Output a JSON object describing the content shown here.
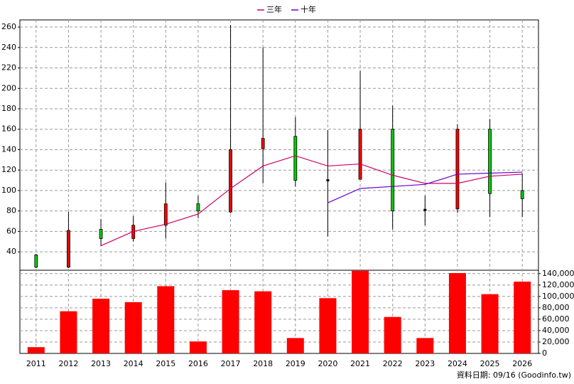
{
  "chart_data": [
    {
      "type": "candlestick",
      "ylim": [
        22,
        267
      ],
      "yticks": [
        40,
        60,
        80,
        100,
        120,
        140,
        160,
        180,
        200,
        220,
        240,
        260
      ],
      "grid": true,
      "up_color": "#ff0000",
      "down_color": "#00cc00",
      "flat_color": "#000000",
      "open": [
        37,
        25,
        62,
        53,
        66,
        87,
        79,
        141,
        153,
        110,
        111,
        160,
        81,
        82,
        160,
        100
      ],
      "high": [
        38,
        79,
        72,
        75,
        108,
        95,
        262,
        240,
        172,
        159,
        217,
        183,
        95,
        165,
        170,
        117
      ],
      "low": [
        24,
        24,
        46,
        50,
        53,
        73,
        78,
        107,
        104,
        55,
        111,
        62,
        66,
        78,
        74,
        74
      ],
      "close": [
        25,
        61,
        53,
        66,
        87,
        80,
        140,
        151,
        110,
        110,
        160,
        80,
        81,
        160,
        97,
        92
      ],
      "series": [
        {
          "name": "三年",
          "color": "#cc0066",
          "values": [
            null,
            null,
            46,
            60,
            67,
            77,
            102,
            124,
            134,
            124,
            126,
            115,
            107,
            107,
            114,
            116
          ]
        },
        {
          "name": "十年",
          "color": "#6600cc",
          "values": [
            null,
            null,
            null,
            null,
            null,
            null,
            null,
            null,
            null,
            88,
            102,
            104,
            106,
            116,
            117,
            118
          ]
        }
      ]
    },
    {
      "type": "bar",
      "categories": [
        "2011",
        "2012",
        "2013",
        "2014",
        "2015",
        "2016",
        "2017",
        "2018",
        "2019",
        "2020",
        "2021",
        "2022",
        "2023",
        "2024",
        "2025",
        "2026"
      ],
      "values": [
        11000,
        74000,
        96000,
        90000,
        118000,
        21000,
        111000,
        109000,
        27000,
        97000,
        145000,
        64000,
        27000,
        141000,
        104000,
        126000
      ],
      "color": "#ff0000",
      "ylim": [
        0,
        146000
      ],
      "yticks": [
        0,
        {
          "value": 20000,
          "label": "20,000"
        },
        {
          "value": 40000,
          "label": "40,000"
        },
        {
          "value": 60000,
          "label": "60,000"
        },
        {
          "value": 80000,
          "label": "80,000"
        },
        {
          "value": 100000,
          "label": "100,000"
        },
        {
          "value": 120000,
          "label": "120,000"
        },
        {
          "value": 140000,
          "label": "140,000"
        }
      ],
      "grid": true,
      "source_note": "資料日期: 09/16  (Goodinfo.tw)"
    }
  ]
}
